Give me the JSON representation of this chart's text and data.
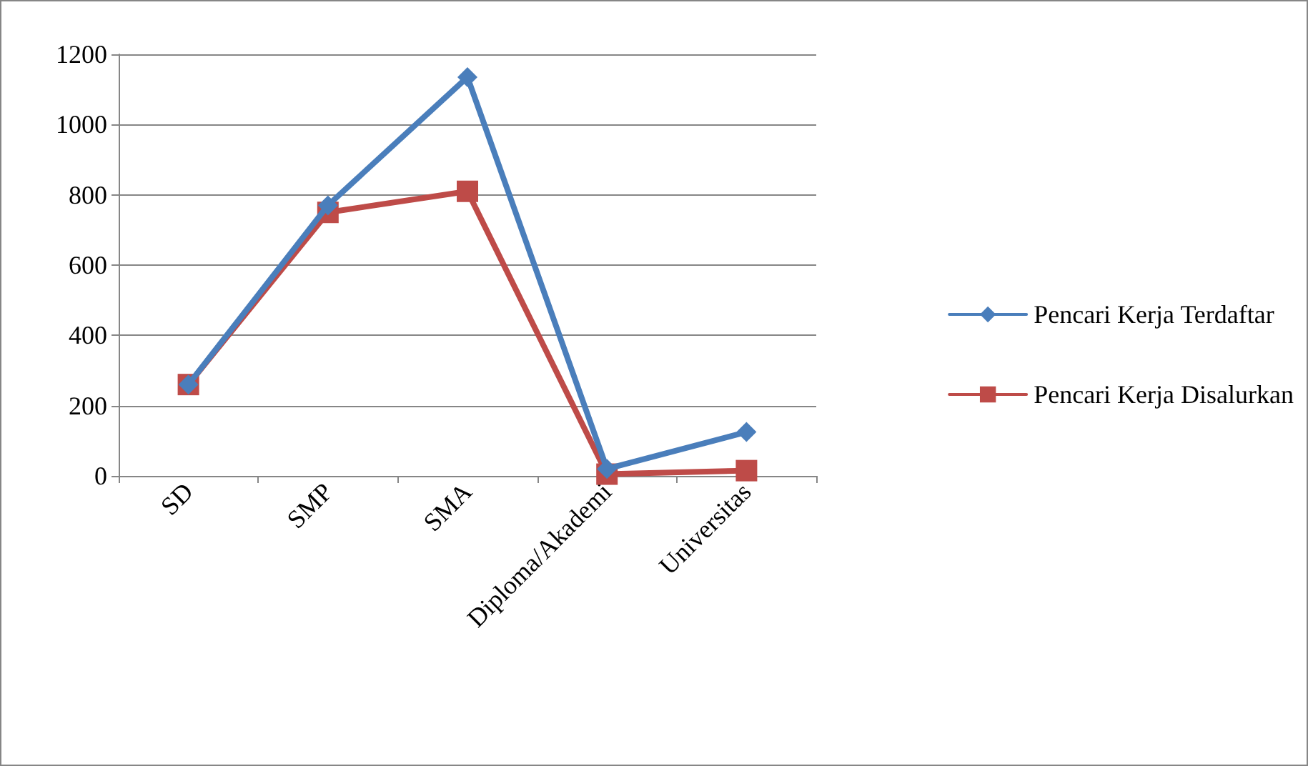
{
  "chart_data": {
    "type": "line",
    "categories": [
      "SD",
      "SMP",
      "SMA",
      "Diploma/Akademi",
      "Universitas"
    ],
    "series": [
      {
        "name": "Pencari Kerja Terdaftar",
        "color": "#4a7ebb",
        "marker": "diamond",
        "values": [
          260,
          770,
          1135,
          20,
          125
        ]
      },
      {
        "name": "Pencari Kerja Disalurkan",
        "color": "#be4b48",
        "marker": "square",
        "values": [
          260,
          750,
          810,
          5,
          15
        ]
      }
    ],
    "ylim": [
      0,
      1200
    ],
    "yticks": [
      0,
      200,
      400,
      600,
      800,
      1000,
      1200
    ],
    "grid": "y",
    "legend": "right",
    "line_style": "solid"
  }
}
